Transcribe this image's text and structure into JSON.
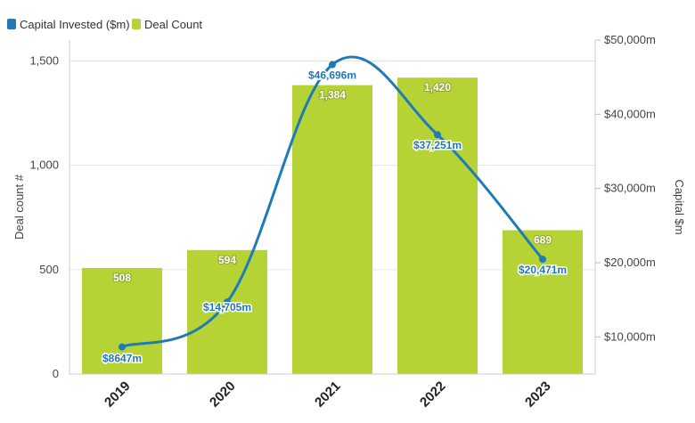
{
  "chart_data": {
    "type": "bar",
    "categories": [
      "2019",
      "2020",
      "2021",
      "2022",
      "2023"
    ],
    "series": [
      {
        "name": "Deal Count",
        "type": "bar",
        "axis": "left",
        "values": [
          508,
          594,
          1384,
          1420,
          689
        ],
        "labels": [
          "508",
          "594",
          "1,384",
          "1,420",
          "689"
        ],
        "color": "#b5d334"
      },
      {
        "name": "Capital Invested ($m)",
        "type": "line",
        "axis": "right",
        "values": [
          8647,
          14705,
          46696,
          37251,
          20471
        ],
        "labels": [
          "$8647m",
          "$14,705m",
          "$46,696m",
          "$37,251m",
          "$20,471m"
        ],
        "color": "#1f7ab8"
      }
    ],
    "y_left": {
      "label": "Deal count #",
      "ylim": [
        0,
        1600
      ],
      "ticks": [
        0,
        500,
        1000,
        1500
      ],
      "tick_labels": [
        "0",
        "500",
        "1,000",
        "1,500"
      ]
    },
    "y_right": {
      "label": "Capital $m",
      "ylim": [
        5000,
        50000
      ],
      "ticks": [
        10000,
        20000,
        30000,
        40000,
        50000
      ],
      "tick_labels": [
        "$10,000m",
        "$20,000m",
        "$30,000m",
        "$40,000m",
        "$50,000m"
      ]
    },
    "grid": true,
    "legend_position": "top-left"
  }
}
